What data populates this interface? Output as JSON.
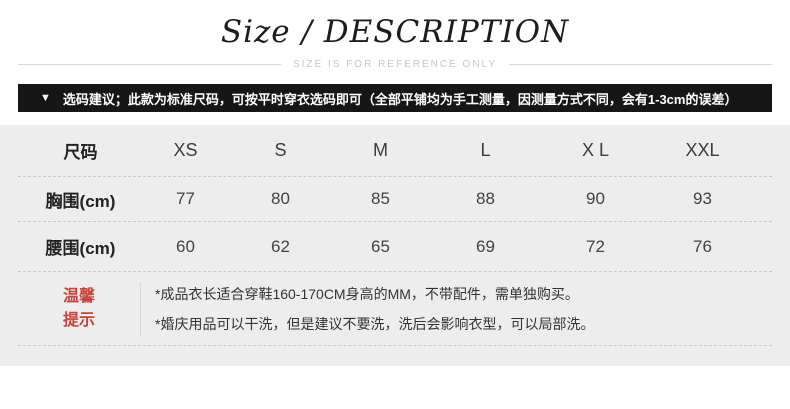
{
  "header": {
    "title": "Size / DESCRIPTION",
    "subtitle": "SIZE IS FOR REFERENCE ONLY"
  },
  "notice": {
    "icon": "▼",
    "text": "选码建议；此款为标准尺码，可按平时穿衣选码即可（全部平铺均为手工测量，因测量方式不同，会有1-3cm的误差）"
  },
  "size_table": {
    "corner_label": "尺码",
    "columns": [
      "XS",
      "S",
      "M",
      "L",
      "X L",
      "XXL"
    ],
    "rows": [
      {
        "label": "胸围(cm)",
        "values": [
          "77",
          "80",
          "85",
          "88",
          "90",
          "93"
        ]
      },
      {
        "label": "腰围(cm)",
        "values": [
          "60",
          "62",
          "65",
          "69",
          "72",
          "76"
        ]
      }
    ]
  },
  "tips": {
    "label_line1": "温馨",
    "label_line2": "提示",
    "lines": [
      "*成品衣长适合穿鞋160-170CM身高的MM，不带配件，需单独购买。",
      "*婚庆用品可以干洗，但是建议不要洗，洗后会影响衣型，可以局部洗。"
    ]
  },
  "colors": {
    "banner_bg": "#161616",
    "panel_bg": "#ededed",
    "accent_red": "#c7443e",
    "subtitle_gray": "#c6c6c6"
  }
}
